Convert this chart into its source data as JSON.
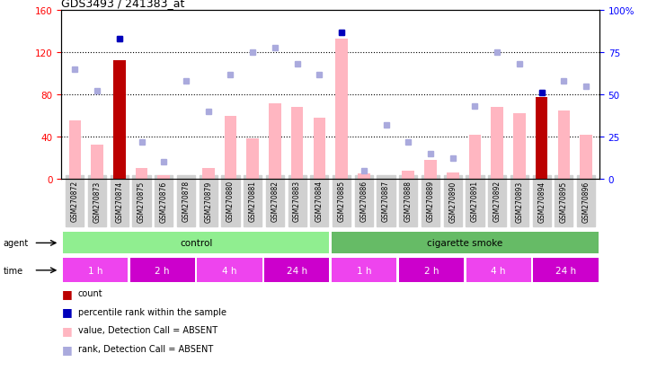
{
  "title": "GDS3493 / 241383_at",
  "samples": [
    "GSM270872",
    "GSM270873",
    "GSM270874",
    "GSM270875",
    "GSM270876",
    "GSM270878",
    "GSM270879",
    "GSM270880",
    "GSM270881",
    "GSM270882",
    "GSM270883",
    "GSM270884",
    "GSM270885",
    "GSM270886",
    "GSM270887",
    "GSM270888",
    "GSM270889",
    "GSM270890",
    "GSM270891",
    "GSM270892",
    "GSM270893",
    "GSM270894",
    "GSM270895",
    "GSM270896"
  ],
  "count_values": [
    0,
    0,
    113,
    0,
    0,
    0,
    0,
    0,
    0,
    0,
    0,
    0,
    0,
    0,
    0,
    0,
    0,
    0,
    0,
    0,
    0,
    78,
    0,
    0
  ],
  "value_absent": [
    55,
    32,
    0,
    10,
    3,
    0,
    10,
    60,
    38,
    72,
    68,
    58,
    133,
    5,
    0,
    8,
    18,
    6,
    42,
    68,
    62,
    0,
    65,
    42
  ],
  "rank_absent": [
    65,
    52,
    83,
    22,
    10,
    58,
    40,
    62,
    75,
    78,
    68,
    62,
    87,
    5,
    32,
    22,
    15,
    12,
    43,
    75,
    68,
    51,
    58,
    55
  ],
  "percentile_rank": [
    0,
    0,
    83,
    0,
    0,
    0,
    0,
    0,
    0,
    0,
    0,
    0,
    87,
    0,
    0,
    0,
    0,
    0,
    0,
    0,
    0,
    51,
    0,
    0
  ],
  "ylim_left": [
    0,
    160
  ],
  "ylim_right": [
    0,
    100
  ],
  "yticks_left": [
    0,
    40,
    80,
    120,
    160
  ],
  "yticks_right": [
    0,
    25,
    50,
    75,
    100
  ],
  "ytick_labels_right": [
    "0",
    "25",
    "50",
    "75",
    "100%"
  ],
  "agent_groups": [
    {
      "label": "control",
      "start": 0,
      "end": 12,
      "color": "#90EE90"
    },
    {
      "label": "cigarette smoke",
      "start": 12,
      "end": 24,
      "color": "#66BB66"
    }
  ],
  "time_groups": [
    {
      "label": "1 h",
      "start": 0,
      "end": 3,
      "color": "#EE44EE"
    },
    {
      "label": "2 h",
      "start": 3,
      "end": 6,
      "color": "#CC00CC"
    },
    {
      "label": "4 h",
      "start": 6,
      "end": 9,
      "color": "#EE44EE"
    },
    {
      "label": "24 h",
      "start": 9,
      "end": 12,
      "color": "#CC00CC"
    },
    {
      "label": "1 h",
      "start": 12,
      "end": 15,
      "color": "#EE44EE"
    },
    {
      "label": "2 h",
      "start": 15,
      "end": 18,
      "color": "#CC00CC"
    },
    {
      "label": "4 h",
      "start": 18,
      "end": 21,
      "color": "#EE44EE"
    },
    {
      "label": "24 h",
      "start": 21,
      "end": 24,
      "color": "#CC00CC"
    }
  ],
  "color_count": "#BB0000",
  "color_value_absent": "#FFB6C1",
  "color_rank_absent": "#AAAADD",
  "color_percentile": "#0000BB",
  "gridline_ticks": [
    40,
    80,
    120
  ],
  "bar_width": 0.55
}
